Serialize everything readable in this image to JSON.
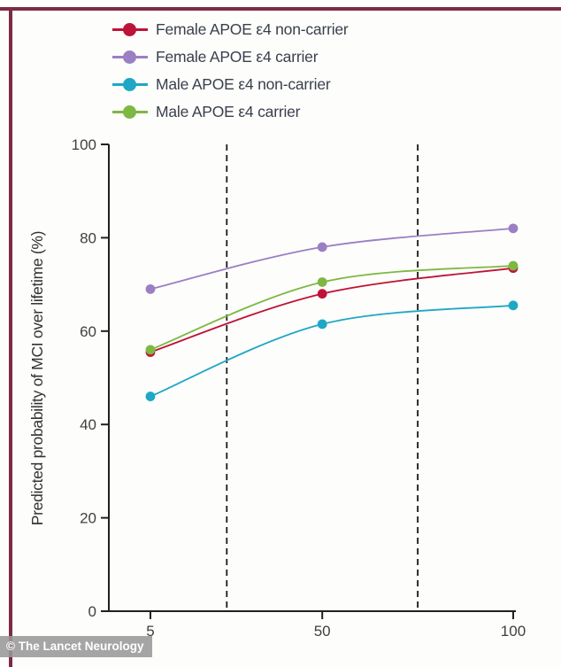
{
  "watermark": "© The Lancet Neurology",
  "theme": {
    "border_color": "#7C2B47",
    "axis_color": "#231F20",
    "tick_label_color": "#3F3F3F",
    "legend_text_color": "#3A3F4D",
    "dashed_line_color": "#1A1A1A",
    "watermark_bg": "rgba(152,152,152,0.88)",
    "watermark_text_color": "#FFFFFF"
  },
  "chart_data": {
    "type": "line",
    "title": "",
    "xlabel": "",
    "ylabel": "Predicted probability of MCI over lifetime (%)",
    "x": [
      5,
      50,
      100
    ],
    "xticks": [
      5,
      50,
      100
    ],
    "yticks": [
      0,
      20,
      40,
      60,
      80,
      100
    ],
    "ylim": [
      0,
      100
    ],
    "grid": false,
    "legend_position": "top-left",
    "dashed_vlines_x": [
      25,
      75
    ],
    "series": [
      {
        "name": "Female APOE ε4 non-carrier",
        "color": "#BE1338",
        "values": [
          55.5,
          68,
          73.5
        ]
      },
      {
        "name": "Female APOE ε4 carrier",
        "color": "#9B7FC3",
        "values": [
          69,
          78,
          82
        ]
      },
      {
        "name": "Male APOE ε4 non-carrier",
        "color": "#1FA7C6",
        "values": [
          46,
          61.5,
          65.5
        ]
      },
      {
        "name": "Male APOE ε4 carrier",
        "color": "#7DB842",
        "values": [
          56,
          70.5,
          74
        ]
      }
    ]
  }
}
